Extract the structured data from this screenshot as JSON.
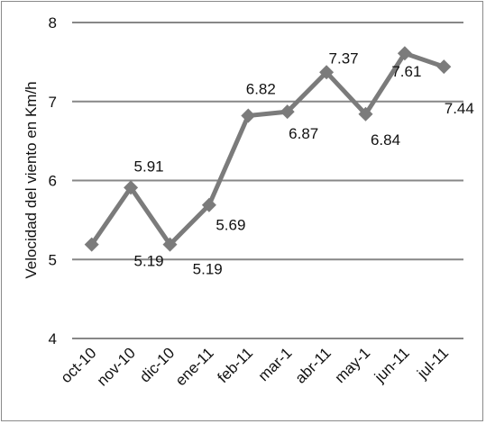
{
  "chart_data": {
    "type": "line",
    "ylabel": "Velocidad del viento en Km/h",
    "xlabel": "",
    "ylim": [
      4,
      8
    ],
    "yticks": [
      4,
      5,
      6,
      7,
      8
    ],
    "grid": true,
    "categories": [
      "oct-10",
      "nov-10",
      "dic-10",
      "ene-11",
      "feb-11",
      "mar-1",
      "abr-11",
      "may-1",
      "jun-11",
      "jul-11"
    ],
    "series": [
      {
        "values": [
          5.19,
          5.91,
          5.19,
          5.69,
          6.82,
          6.87,
          7.37,
          6.84,
          7.61,
          7.44
        ],
        "labels": [
          "",
          "5.91",
          "",
          "5.69",
          "6.82",
          "6.87",
          "7.37",
          "6.84",
          "7.61",
          "7.44"
        ]
      }
    ],
    "extra_labels": [
      "5.19",
      "5.19"
    ],
    "color": "#7b7b7b"
  }
}
